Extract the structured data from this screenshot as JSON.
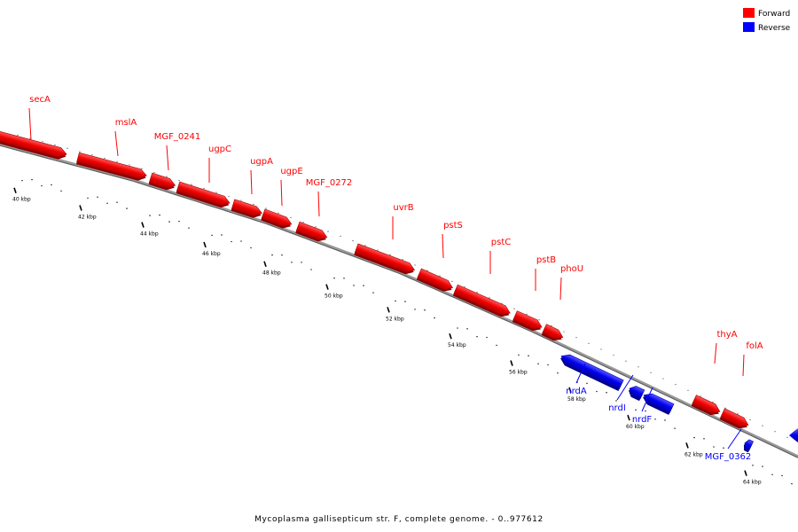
{
  "legend": {
    "forward_label": "Forward",
    "reverse_label": "Reverse",
    "forward_color": "#ff0000",
    "reverse_color": "#0000ff"
  },
  "caption": "Mycoplasma gallisepticum str. F, complete genome. - 0..977612",
  "axis": {
    "unit": "kbp",
    "labels": [
      "40 kbp",
      "42 kbp",
      "44 kbp",
      "46 kbp",
      "48 kbp",
      "50 kbp",
      "52 kbp",
      "54 kbp",
      "56 kbp",
      "58 kbp",
      "60 kbp",
      "62 kbp",
      "64 kbp"
    ]
  },
  "genes": [
    {
      "name": "secA",
      "strand": "forward"
    },
    {
      "name": "mslA",
      "strand": "forward"
    },
    {
      "name": "MGF_0241",
      "strand": "forward"
    },
    {
      "name": "ugpC",
      "strand": "forward"
    },
    {
      "name": "ugpA",
      "strand": "forward"
    },
    {
      "name": "ugpE",
      "strand": "forward"
    },
    {
      "name": "MGF_0272",
      "strand": "forward"
    },
    {
      "name": "uvrB",
      "strand": "forward"
    },
    {
      "name": "pstS",
      "strand": "forward"
    },
    {
      "name": "pstC",
      "strand": "forward"
    },
    {
      "name": "pstB",
      "strand": "forward"
    },
    {
      "name": "phoU",
      "strand": "forward"
    },
    {
      "name": "thyA",
      "strand": "forward"
    },
    {
      "name": "folA",
      "strand": "forward"
    },
    {
      "name": "nrdA",
      "strand": "reverse"
    },
    {
      "name": "nrdI",
      "strand": "reverse"
    },
    {
      "name": "nrdF",
      "strand": "reverse"
    },
    {
      "name": "MGF_0362",
      "strand": "reverse"
    }
  ]
}
